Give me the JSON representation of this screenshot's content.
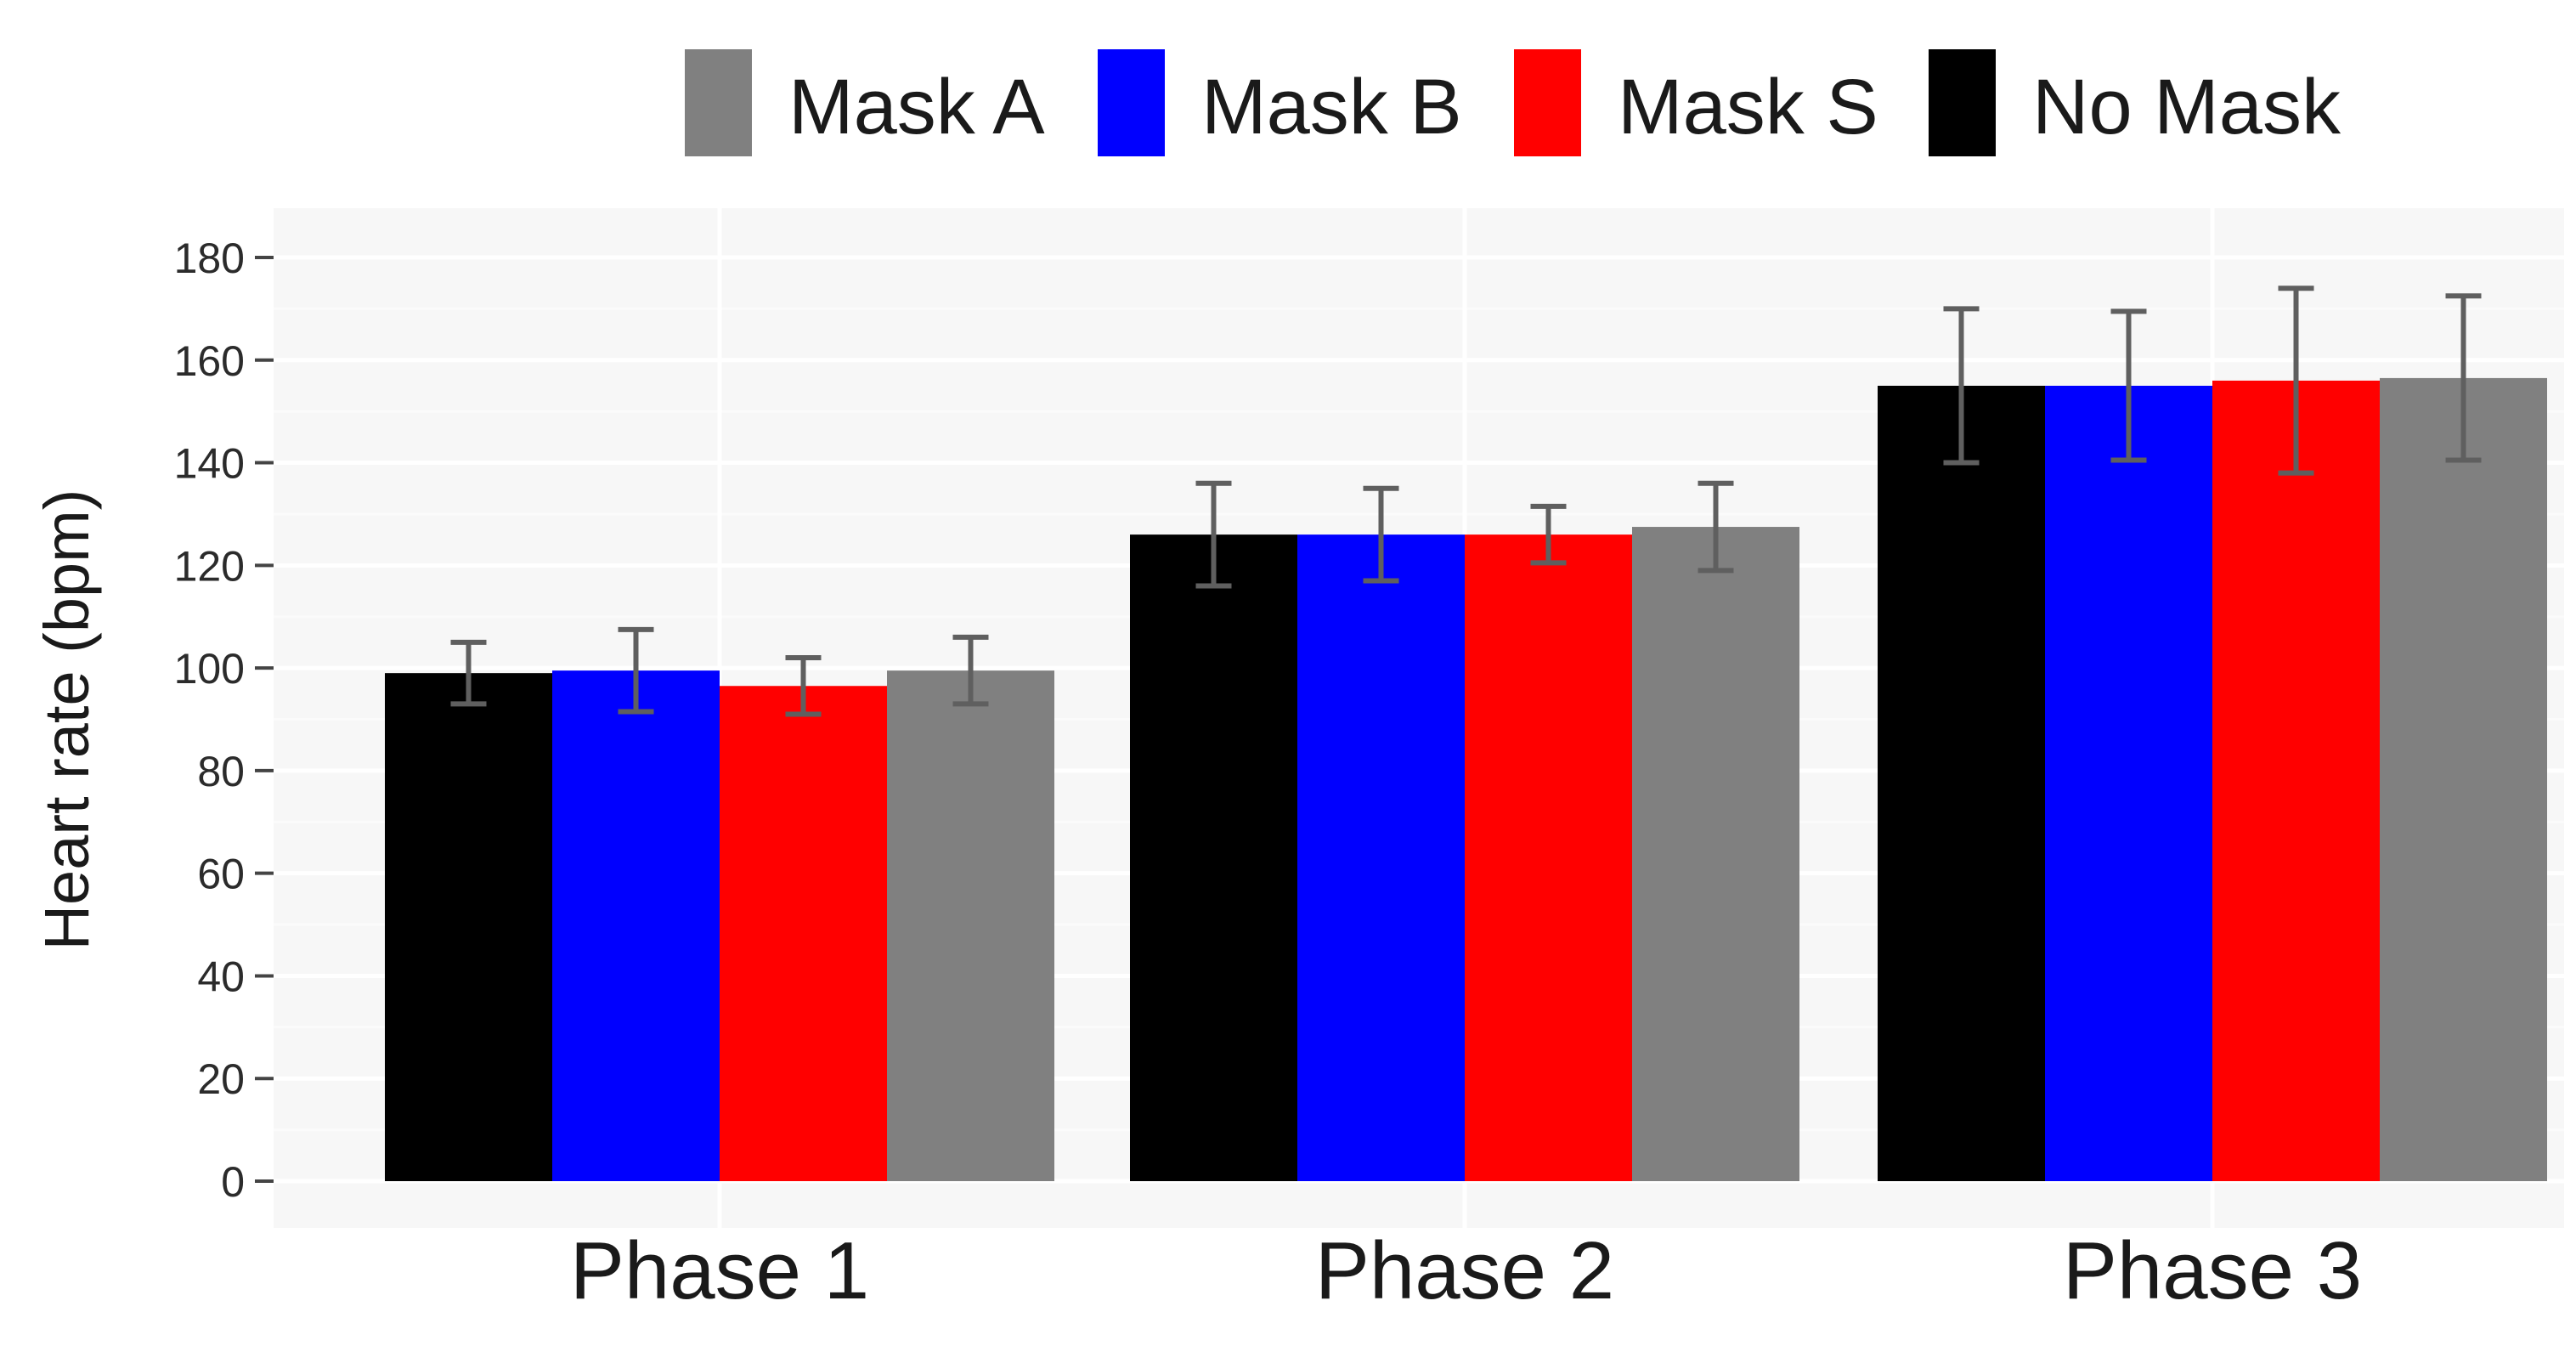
{
  "chart_data": {
    "type": "bar",
    "title": "",
    "xlabel": "",
    "ylabel": "Heart rate (bpm)",
    "ylim": [
      0,
      180
    ],
    "yticks": [
      0,
      20,
      40,
      60,
      80,
      100,
      120,
      140,
      160,
      180
    ],
    "grid": true,
    "legend_position": "top",
    "categories": [
      "Phase 1",
      "Phase 2",
      "Phase 3"
    ],
    "legend": [
      {
        "name": "Mask A",
        "color": "#808080"
      },
      {
        "name": "Mask B",
        "color": "#0000ff"
      },
      {
        "name": "Mask S",
        "color": "#ff0000"
      },
      {
        "name": "No Mask",
        "color": "#000000"
      }
    ],
    "series": [
      {
        "name": "No Mask",
        "color": "#000000",
        "values": [
          99,
          126,
          155
        ],
        "error": [
          6,
          10,
          15
        ]
      },
      {
        "name": "Mask B",
        "color": "#0000ff",
        "values": [
          99.5,
          126,
          155
        ],
        "error": [
          8,
          9,
          14.5
        ]
      },
      {
        "name": "Mask S",
        "color": "#ff0000",
        "values": [
          96.5,
          126,
          156
        ],
        "error": [
          5.5,
          5.5,
          18
        ]
      },
      {
        "name": "Mask A",
        "color": "#808080",
        "values": [
          99.5,
          127.5,
          156.5
        ],
        "error": [
          6.5,
          8.5,
          16
        ]
      }
    ]
  }
}
